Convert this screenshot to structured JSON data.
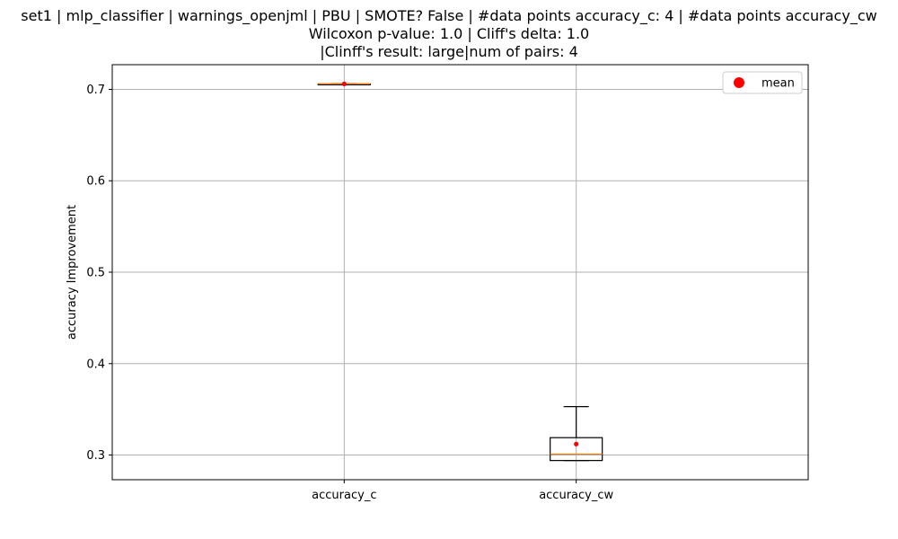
{
  "chart_data": {
    "type": "box",
    "title_lines": [
      "set1 | mlp_classifier | warnings_openjml | PBU | SMOTE? False | #data points accuracy_c: 4 | #data points accuracy_cw",
      "Wilcoxon p-value: 1.0 | Cliff's delta: 1.0",
      "|Clinff's result: large|num of pairs: 4"
    ],
    "ylabel": "accuracy Improvement",
    "xlabel": "",
    "ylim": [
      0.273,
      0.727
    ],
    "yticks": [
      0.3,
      0.4,
      0.5,
      0.6,
      0.7
    ],
    "ytick_labels": [
      "0.3",
      "0.4",
      "0.5",
      "0.6",
      "0.7"
    ],
    "grid": true,
    "legend": {
      "position": "top-right",
      "entries": [
        {
          "label": "mean",
          "marker": "circle",
          "color": "#ff0000"
        }
      ]
    },
    "categories": [
      "accuracy_c",
      "accuracy_cw"
    ],
    "boxes": [
      {
        "name": "accuracy_c",
        "whislo": 0.706,
        "q1": 0.706,
        "med": 0.706,
        "q3": 0.706,
        "whishi": 0.706,
        "mean": 0.706
      },
      {
        "name": "accuracy_cw",
        "whislo": 0.294,
        "q1": 0.294,
        "med": 0.301,
        "q3": 0.319,
        "whishi": 0.353,
        "mean": 0.312
      }
    ],
    "colors": {
      "box": "#000000",
      "median": "#ff7f0e",
      "mean": "#ff0000",
      "grid": "#b0b0b0"
    }
  }
}
